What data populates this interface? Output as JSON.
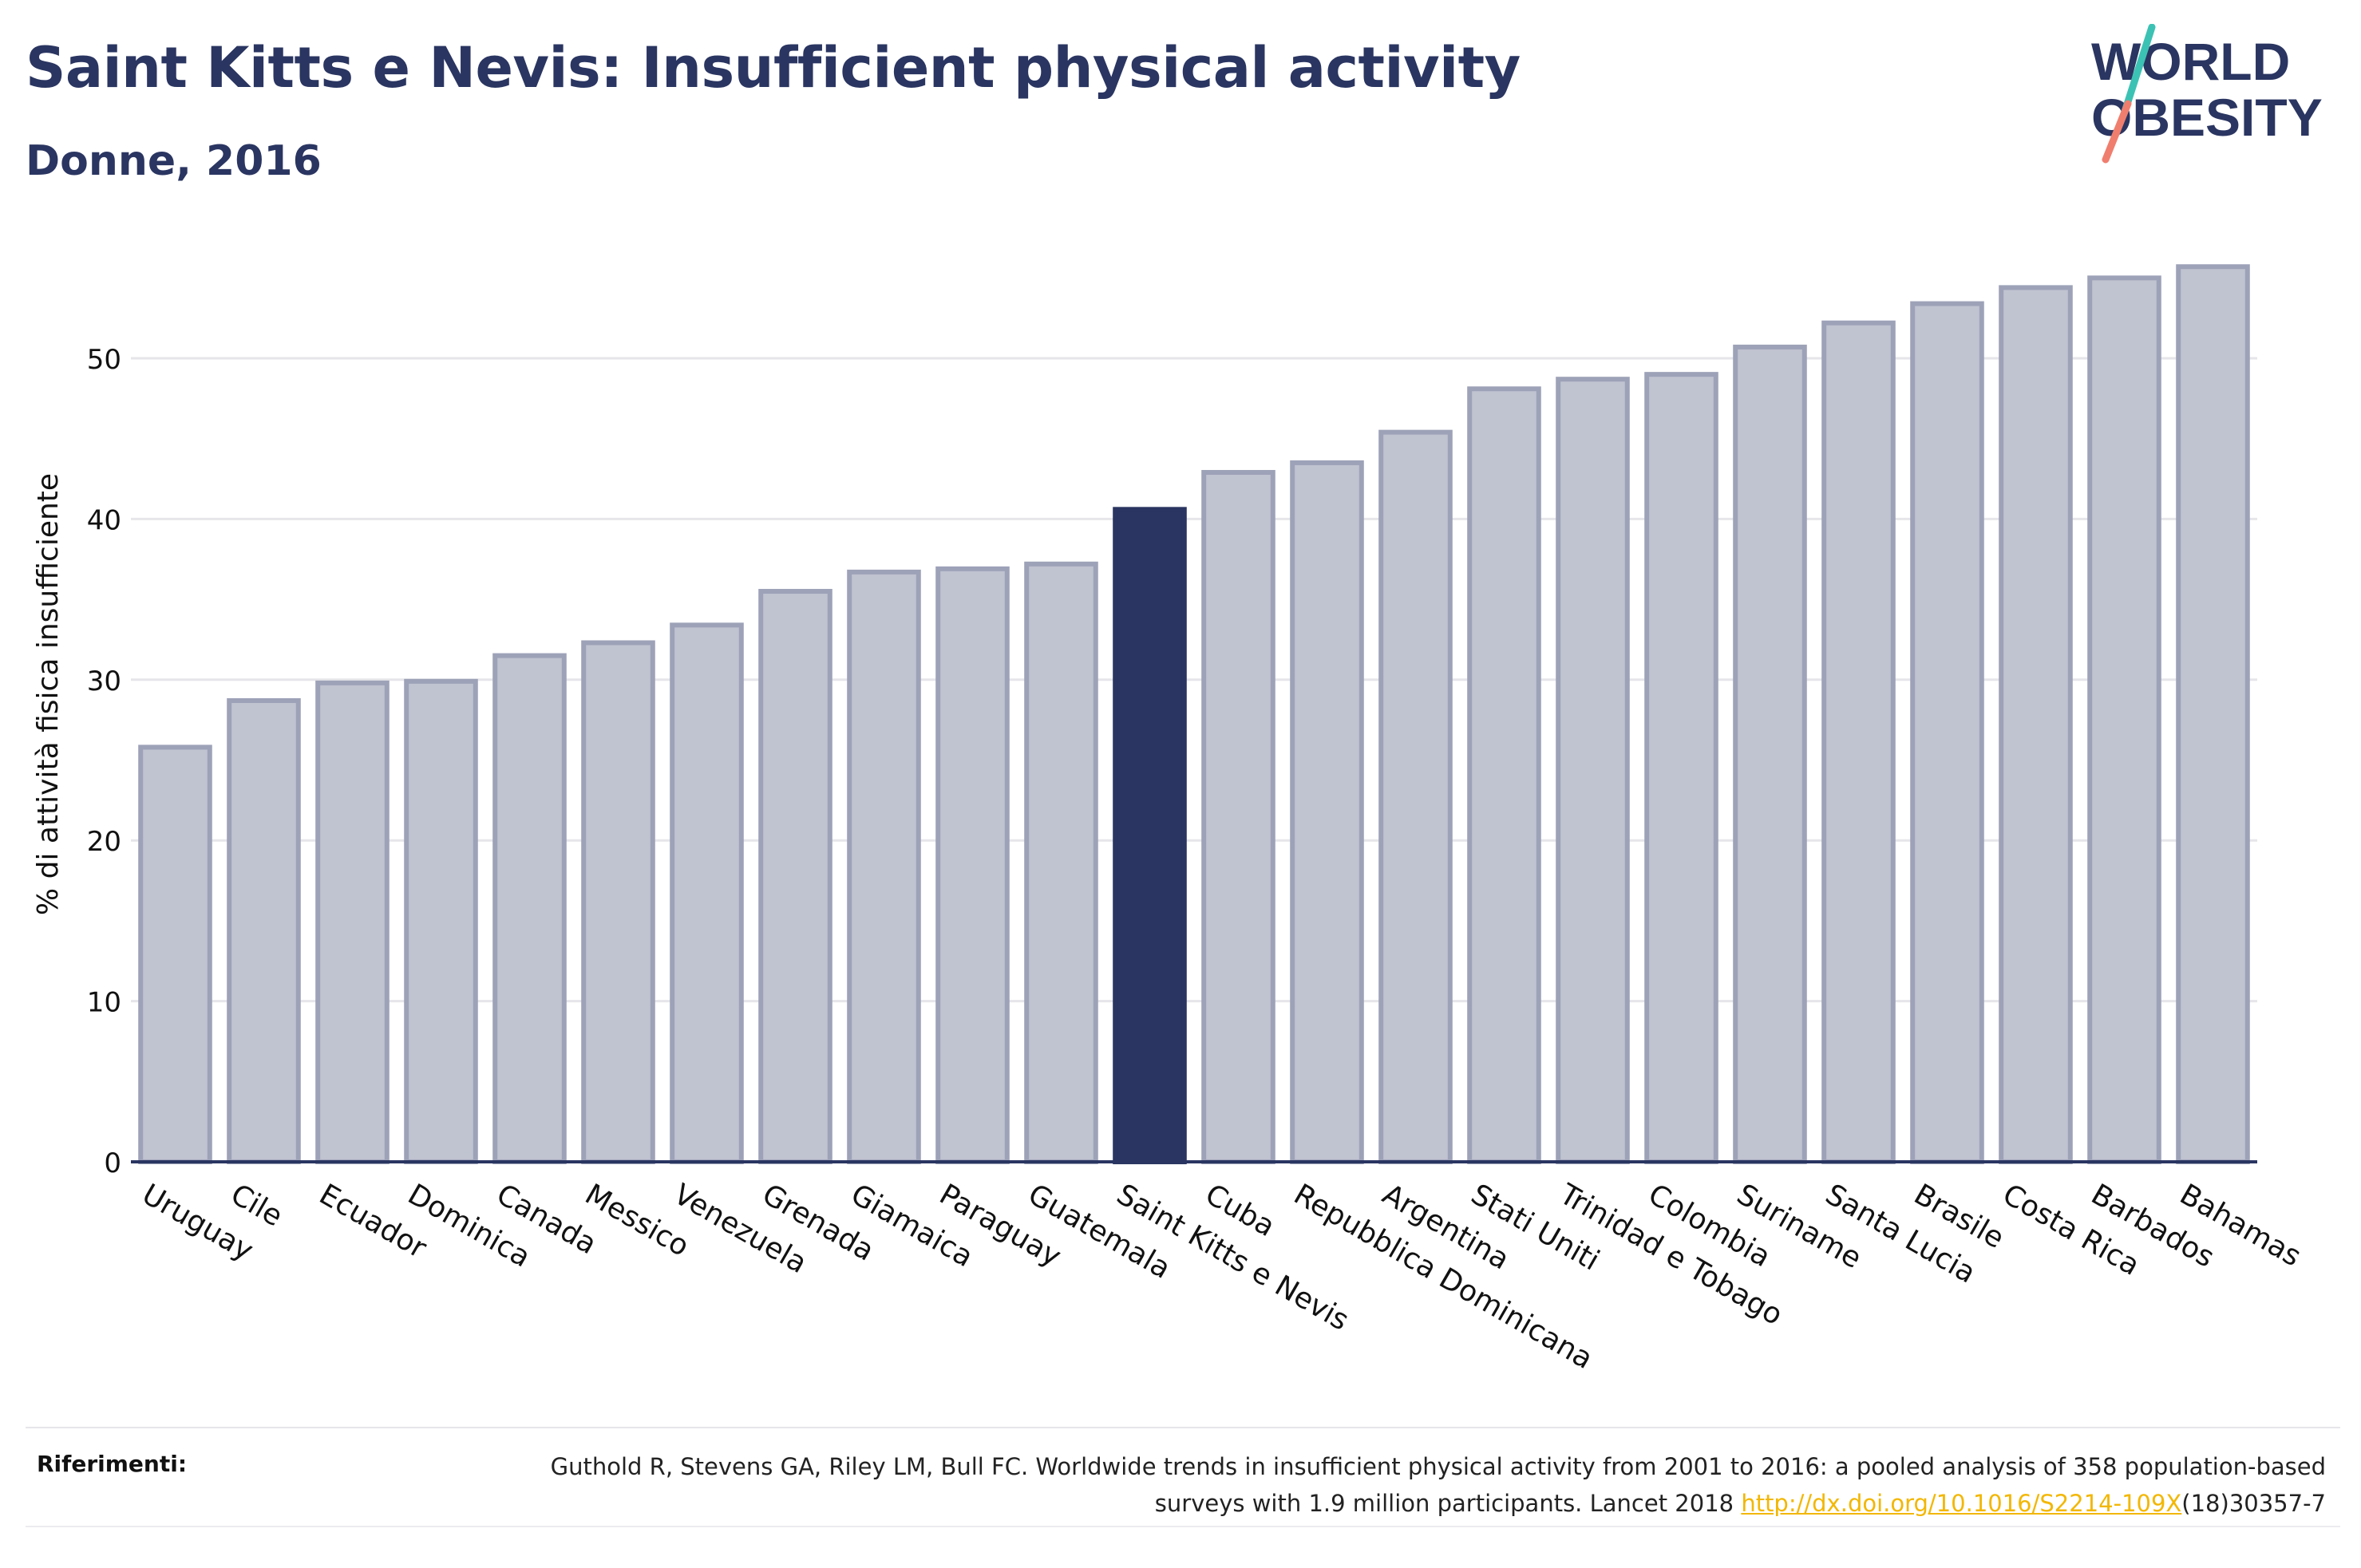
{
  "header": {
    "title": "Saint Kitts e Nevis: Insufficient physical activity",
    "subtitle": "Donne, 2016"
  },
  "logo": {
    "line1": "WORLD",
    "line2": "OBESITY",
    "colors": {
      "text": "#2a3561",
      "accent_teal": "#3cc2b4",
      "accent_coral": "#f07e6e"
    }
  },
  "chart_data": {
    "type": "bar",
    "ylabel": "% di attività fisica insufficiente",
    "xlabel": "",
    "ylim": [
      0,
      57
    ],
    "yticks": [
      0,
      10,
      20,
      30,
      40,
      50
    ],
    "grid": true,
    "highlight": "Saint Kitts e Nevis",
    "colors": {
      "bar": "#c0c3d0",
      "bar_edge": "#9da2b8",
      "highlight": "#2a3561",
      "grid": "#e6e6ea",
      "axis": "#2a3561"
    },
    "categories": [
      "Uruguay",
      "Cile",
      "Ecuador",
      "Dominica",
      "Canada",
      "Messico",
      "Venezuela",
      "Grenada",
      "Giamaica",
      "Paraguay",
      "Guatemala",
      "Saint Kitts e Nevis",
      "Cuba",
      "Repubblica Dominicana",
      "Argentina",
      "Stati Uniti",
      "Trinidad e Tobago",
      "Colombia",
      "Suriname",
      "Santa Lucia",
      "Brasile",
      "Costa Rica",
      "Barbados",
      "Bahamas"
    ],
    "values": [
      25.8,
      28.7,
      29.8,
      29.9,
      31.5,
      32.3,
      33.4,
      35.5,
      36.7,
      36.9,
      37.2,
      40.6,
      42.9,
      43.5,
      45.4,
      48.1,
      48.7,
      49.0,
      50.7,
      52.2,
      53.4,
      54.4,
      55.0,
      55.7
    ]
  },
  "references": {
    "label": "Riferimenti:",
    "text_part1": "Guthold R, Stevens GA, Riley LM, Bull FC. Worldwide trends in insufficient physical activity from 2001 to 2016: a pooled analysis of 358 population-based surveys with 1.9 million participants. Lancet 2018 ",
    "link": "http://dx.doi.org/10.1016/S2214-109X",
    "text_part2": "(18)30357-7"
  }
}
